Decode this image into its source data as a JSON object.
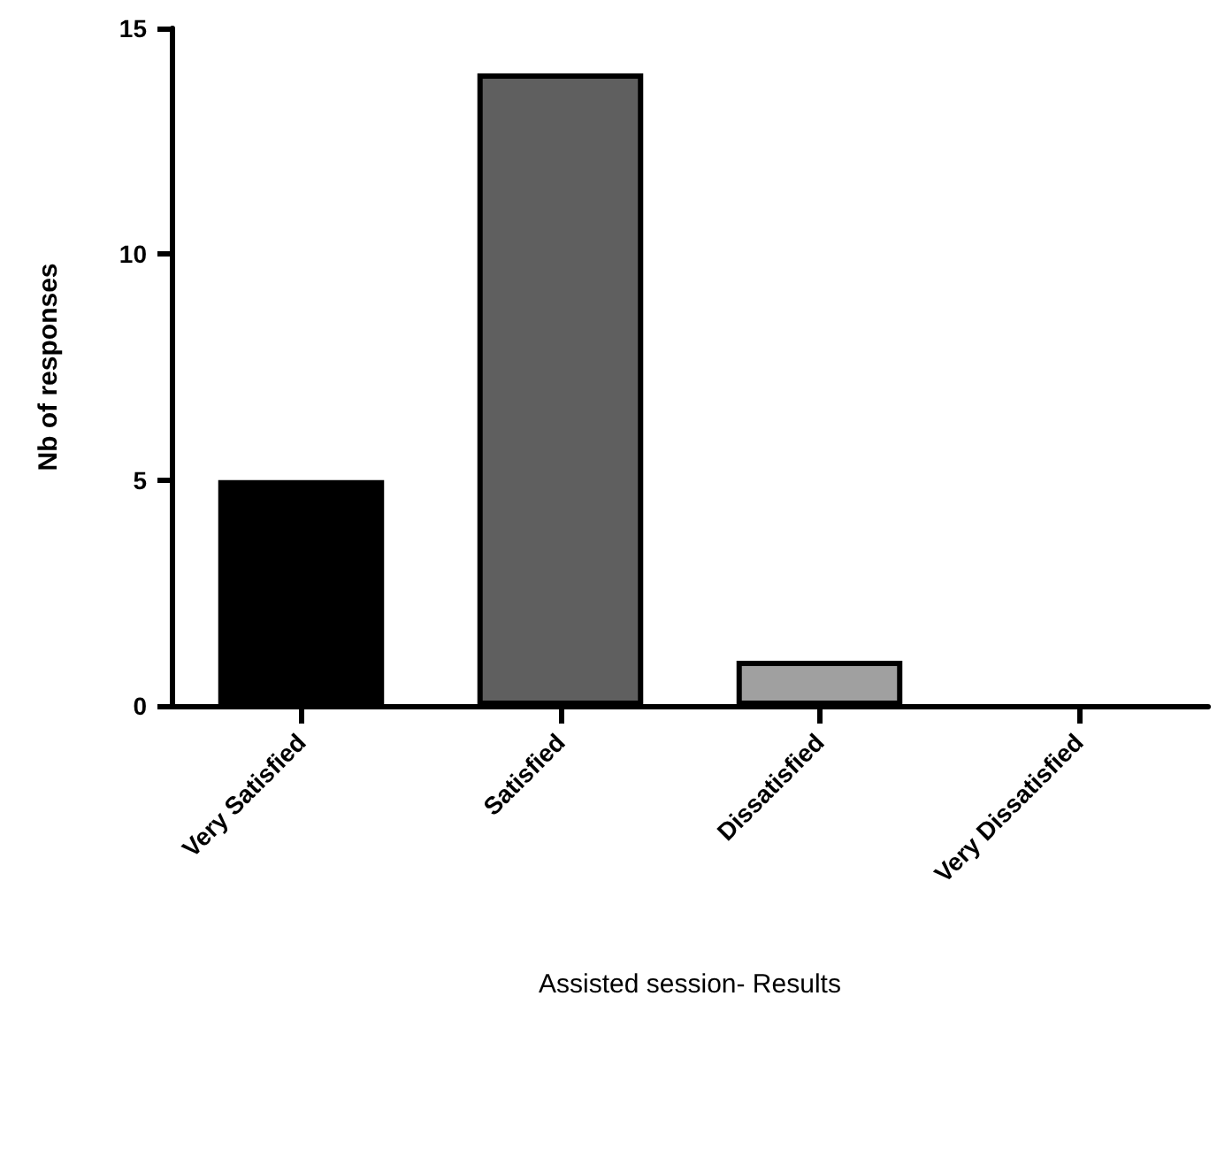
{
  "chart_data": {
    "type": "bar",
    "xlabel": "Assisted session- Results",
    "ylabel": "Nb of responses",
    "categories": [
      "Very Satisfied",
      "Satisfied",
      "Dissatisfied",
      "Very Dissatisfied"
    ],
    "values": [
      5,
      14,
      1,
      0
    ],
    "colors": [
      "#000000",
      "#5f5f5f",
      "#a0a0a0",
      "#ffffff"
    ],
    "ylim": [
      0,
      15
    ],
    "yticks": [
      0,
      5,
      10,
      15
    ],
    "grid": false
  }
}
